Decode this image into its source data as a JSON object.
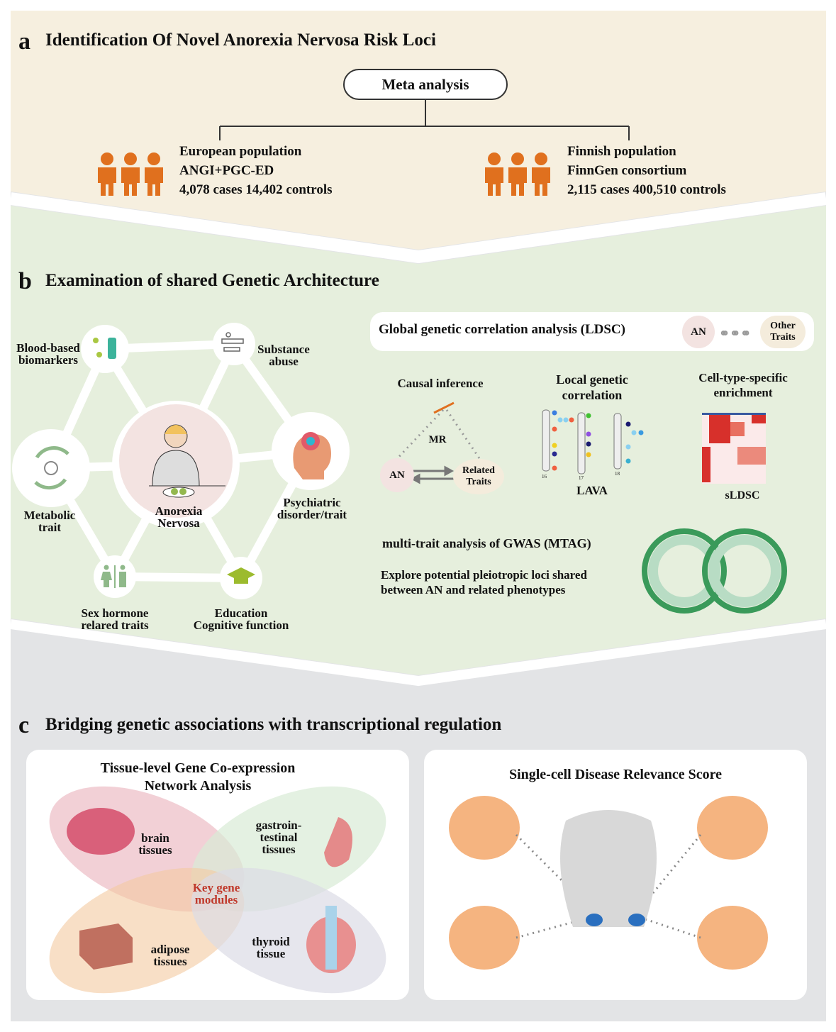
{
  "colors": {
    "section_a_bg": "#f6efdf",
    "section_b_bg": "#e6efdd",
    "section_c_bg": "#e3e4e6",
    "people_icon": "#e0701e",
    "an_bubble": "#f3e3e1",
    "traits_bubble": "#f4ecdc",
    "key_gene_modules": "#c0392b",
    "heatmap_red": "#d7302b"
  },
  "section_a": {
    "letter": "a",
    "title": "Identification Of Novel Anorexia Nervosa Risk Loci",
    "meta_box": "Meta analysis",
    "left": {
      "icon": "people-icon",
      "line1": "European population",
      "line2": "ANGI+PGC-ED",
      "line3": "4,078 cases 14,402 controls"
    },
    "right": {
      "icon": "people-icon",
      "line1": "Finnish population",
      "line2": "FinnGen consortium",
      "line3": "2,115 cases 400,510 controls"
    }
  },
  "section_b": {
    "letter": "b",
    "title": "Examination of shared Genetic Architecture",
    "network": {
      "center": [
        "Anorexia",
        "Nervosa"
      ],
      "blood": [
        "Blood-based",
        "biomarkers"
      ],
      "substance": [
        "Substance",
        "abuse"
      ],
      "metabolic": [
        "Metabolic",
        "trait"
      ],
      "psychiatric": [
        "Psychiatric",
        "disorder/trait"
      ],
      "sex": [
        "Sex hormone",
        "relared traits"
      ],
      "education": [
        "Education",
        "Cognitive function"
      ]
    },
    "ldsc": {
      "title": "Global genetic correlation analysis (LDSC)",
      "an": "AN",
      "other": [
        "Other",
        "Traits"
      ]
    },
    "causal": {
      "title": "Causal inference",
      "mr": "MR",
      "an": "AN",
      "related": [
        "Related",
        "Traits"
      ]
    },
    "local": {
      "title": [
        "Local genetic",
        "correlation"
      ],
      "method": "LAVA",
      "chromosomes": [
        "16",
        "17",
        "18"
      ]
    },
    "cell": {
      "title": [
        "Cell-type-specific",
        "enrichment"
      ],
      "method": "sLDSC"
    },
    "mtag": {
      "title": "multi-trait analysis of GWAS (MTAG)",
      "desc": [
        "Explore potential pleiotropic loci shared",
        "between AN and related phenotypes"
      ]
    }
  },
  "section_c": {
    "letter": "c",
    "title": "Bridging genetic associations with transcriptional regulation",
    "left": {
      "title": [
        "Tissue-level Gene Co-expression",
        "Network Analysis"
      ],
      "brain": [
        "brain",
        "tissues"
      ],
      "gi": [
        "gastroin-",
        "testinal",
        "tissues"
      ],
      "adipose": [
        "adipose",
        "tissues"
      ],
      "thyroid": [
        "thyroid",
        "tissue"
      ],
      "key": [
        "Key gene",
        "modules"
      ]
    },
    "right": {
      "title": "Single-cell Disease Relevance Score"
    }
  }
}
